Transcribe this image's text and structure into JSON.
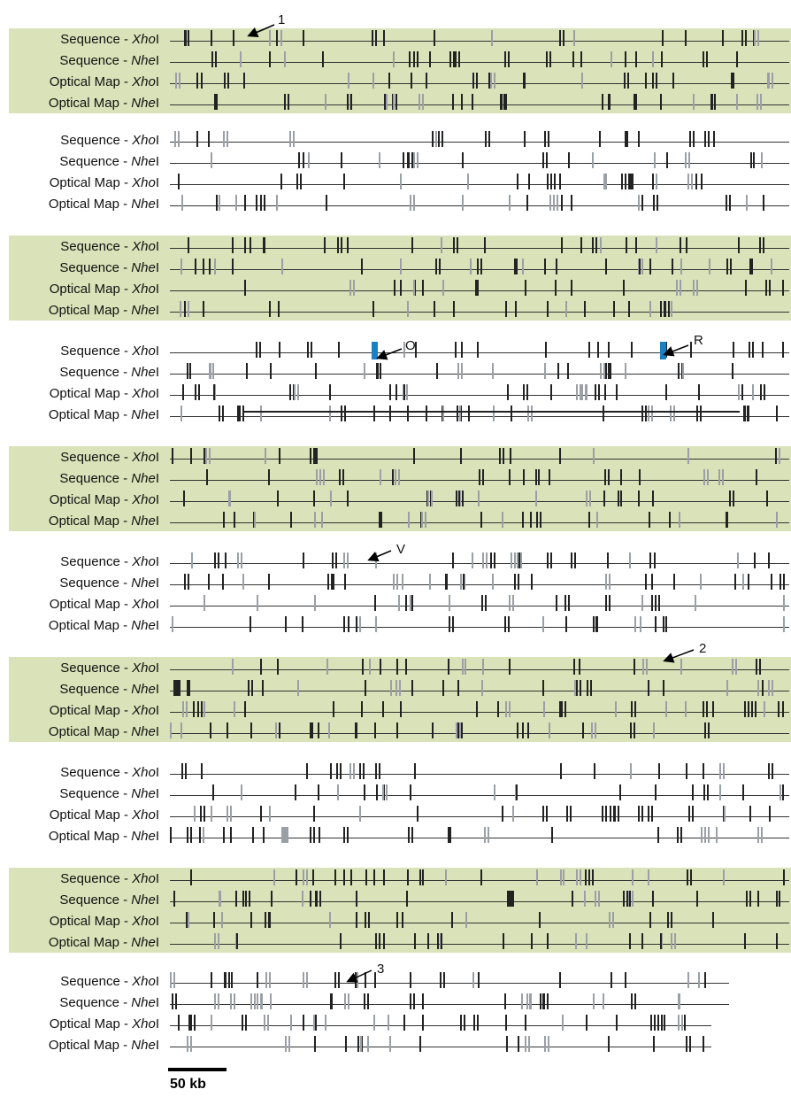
{
  "labels": {
    "seq_prefix": "Sequence - ",
    "opt_prefix": "Optical Map - ",
    "xho_italic": "Xho",
    "xho_suffix": "I",
    "nhe_italic": "Nhe",
    "nhe_suffix": "I"
  },
  "panels": [
    {
      "shaded": true
    },
    {
      "shaded": false
    },
    {
      "shaded": true
    },
    {
      "shaded": false
    },
    {
      "shaded": true
    },
    {
      "shaded": false
    },
    {
      "shaded": true
    },
    {
      "shaded": false
    },
    {
      "shaded": true
    },
    {
      "shaded": false
    }
  ],
  "annotations": {
    "a1": "1",
    "aO": "O",
    "aR": "R",
    "aV": "V",
    "a2": "2",
    "a3": "3"
  },
  "scale": {
    "label": "50 kb"
  }
}
